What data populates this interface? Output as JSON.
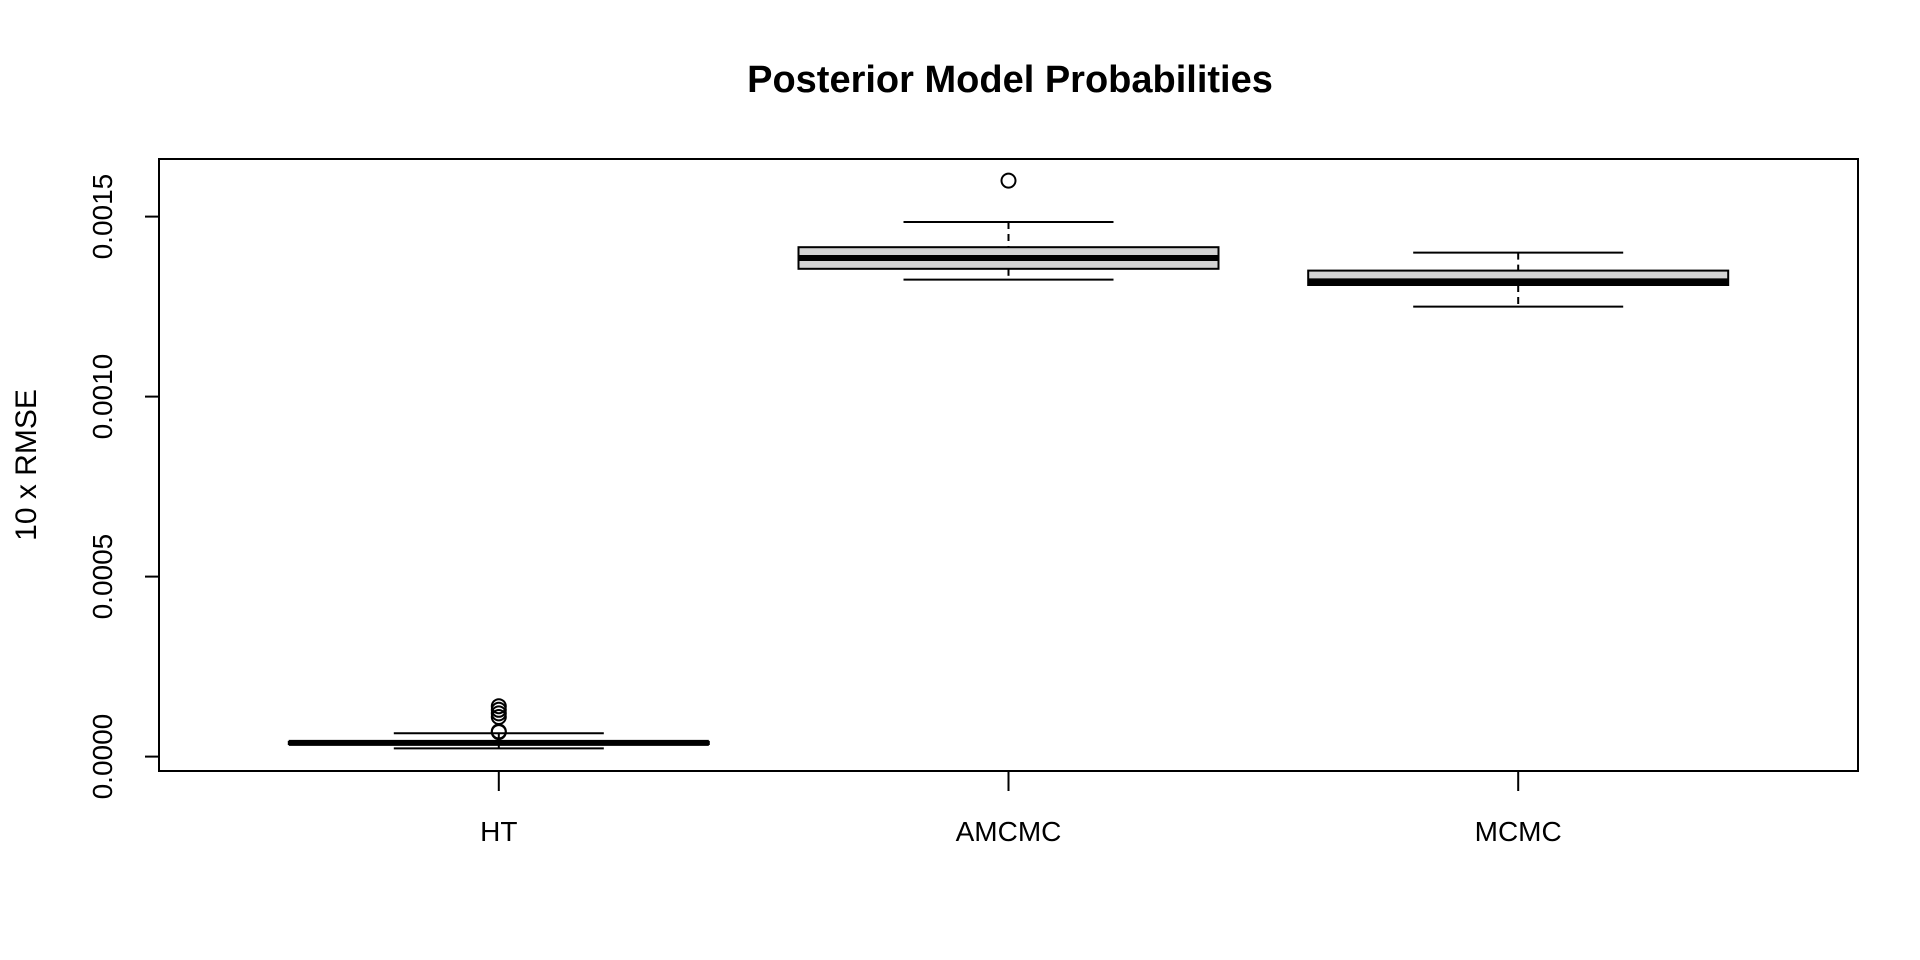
{
  "chart_data": {
    "type": "boxplot",
    "title": "Posterior Model Probabilities",
    "xlabel": "",
    "ylabel": "10 x RMSE",
    "ylim": [
      -4e-05,
      0.00166
    ],
    "yticks": [
      0.0,
      0.0005,
      0.001,
      0.0015
    ],
    "ytick_labels": [
      "0.0000",
      "0.0005",
      "0.0010",
      "0.0015"
    ],
    "categories": [
      "HT",
      "AMCMC",
      "MCMC"
    ],
    "box_fill": "#d3d3d3",
    "line_color": "#000000",
    "boxes": [
      {
        "label": "HT",
        "whisker_low": 2.3e-05,
        "q1": 3.5e-05,
        "median": 3.8e-05,
        "q3": 4.1e-05,
        "whisker_high": 6.5e-05,
        "outliers": [
          6.8e-05,
          7e-05,
          0.00011,
          0.00012,
          0.00013,
          0.00014
        ]
      },
      {
        "label": "AMCMC",
        "whisker_low": 0.001325,
        "q1": 0.001355,
        "median": 0.001385,
        "q3": 0.001415,
        "whisker_high": 0.001485,
        "outliers": [
          0.0016
        ]
      },
      {
        "label": "MCMC",
        "whisker_low": 0.00125,
        "q1": 0.00131,
        "median": 0.00132,
        "q3": 0.00135,
        "whisker_high": 0.0014,
        "outliers": []
      }
    ]
  }
}
